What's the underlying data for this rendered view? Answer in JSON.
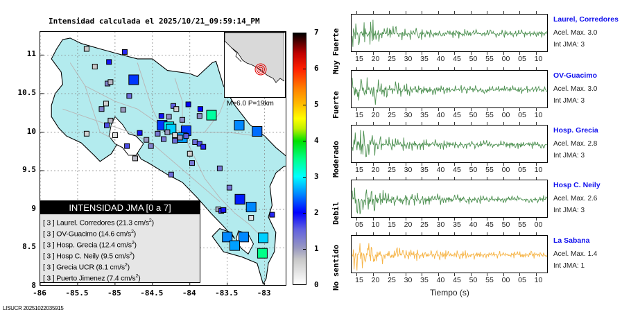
{
  "chart_data": [
    {
      "type": "scatter",
      "title": "Intensidad calculada el 2025/10/21_09:59:14_PM",
      "xlabel": "",
      "ylabel": "",
      "xlim": [
        -86,
        -82.7
      ],
      "ylim": [
        8,
        11.3
      ],
      "xticks": [
        "-86",
        "-85.5",
        "-85",
        "-84.5",
        "-84",
        "-83.5",
        "-83"
      ],
      "yticks": [
        "8",
        "8.5",
        "9",
        "9.5",
        "10",
        "10.5",
        "11"
      ],
      "grid": true,
      "colorbar": {
        "range": [
          0,
          7
        ],
        "ticks": [
          "0",
          "1",
          "2",
          "3",
          "4",
          "5",
          "6",
          "7"
        ],
        "categories": [
          "No sentido",
          "Debil",
          "Moderado",
          "Fuerte",
          "Muy Fuerte"
        ]
      },
      "stations": [
        {
          "lon": -84.75,
          "lat": 10.68,
          "intensity": 2.2,
          "size": "large"
        },
        {
          "lon": -84.37,
          "lat": 10.09,
          "intensity": 2.2,
          "size": "large"
        },
        {
          "lon": -84.28,
          "lat": 10.07,
          "intensity": 3.0,
          "size": "large"
        },
        {
          "lon": -84.25,
          "lat": 10.04,
          "intensity": 2.8,
          "size": "large"
        },
        {
          "lon": -84.05,
          "lat": 10.02,
          "intensity": 2.2,
          "size": "large"
        },
        {
          "lon": -84.1,
          "lat": 9.93,
          "intensity": 2.6,
          "size": "large"
        },
        {
          "lon": -83.71,
          "lat": 10.22,
          "intensity": 3.4,
          "size": "large"
        },
        {
          "lon": -83.34,
          "lat": 10.09,
          "intensity": 2.5,
          "size": "large"
        },
        {
          "lon": -83.1,
          "lat": 10.01,
          "intensity": 2.4,
          "size": "large"
        },
        {
          "lon": -83.33,
          "lat": 9.13,
          "intensity": 2.1,
          "size": "large"
        },
        {
          "lon": -83.18,
          "lat": 9.03,
          "intensity": 2.5,
          "size": "large"
        },
        {
          "lon": -83.5,
          "lat": 8.64,
          "intensity": 2.5,
          "size": "large"
        },
        {
          "lon": -83.28,
          "lat": 8.64,
          "intensity": 2.5,
          "size": "large"
        },
        {
          "lon": -83.02,
          "lat": 8.63,
          "intensity": 2.8,
          "size": "large"
        },
        {
          "lon": -83.4,
          "lat": 8.53,
          "intensity": 2.6,
          "size": "large"
        },
        {
          "lon": -83.03,
          "lat": 8.43,
          "intensity": 3.5,
          "size": "large"
        },
        {
          "lon": -85.38,
          "lat": 11.08,
          "intensity": 0.7,
          "size": "small"
        },
        {
          "lon": -84.87,
          "lat": 11.04,
          "intensity": 1.8,
          "size": "small"
        },
        {
          "lon": -85.27,
          "lat": 10.85,
          "intensity": 0.7,
          "size": "small"
        },
        {
          "lon": -85.08,
          "lat": 10.91,
          "intensity": 1.9,
          "size": "small"
        },
        {
          "lon": -85.1,
          "lat": 10.63,
          "intensity": 1.2,
          "size": "small"
        },
        {
          "lon": -85.06,
          "lat": 10.65,
          "intensity": 0.8,
          "size": "small"
        },
        {
          "lon": -84.81,
          "lat": 10.47,
          "intensity": 1.4,
          "size": "small"
        },
        {
          "lon": -85.12,
          "lat": 10.37,
          "intensity": 0.6,
          "size": "small"
        },
        {
          "lon": -85.18,
          "lat": 10.3,
          "intensity": 1.2,
          "size": "small"
        },
        {
          "lon": -85.06,
          "lat": 10.15,
          "intensity": 0.8,
          "size": "small"
        },
        {
          "lon": -84.89,
          "lat": 10.29,
          "intensity": 1.0,
          "size": "small"
        },
        {
          "lon": -85.11,
          "lat": 10.09,
          "intensity": 1.6,
          "size": "small"
        },
        {
          "lon": -85.38,
          "lat": 9.98,
          "intensity": 0.6,
          "size": "small"
        },
        {
          "lon": -85.0,
          "lat": 9.96,
          "intensity": 0.4,
          "size": "small"
        },
        {
          "lon": -84.67,
          "lat": 9.99,
          "intensity": 1.9,
          "size": "small"
        },
        {
          "lon": -84.84,
          "lat": 9.82,
          "intensity": 1.6,
          "size": "small"
        },
        {
          "lon": -84.73,
          "lat": 9.66,
          "intensity": 0.8,
          "size": "small"
        },
        {
          "lon": -84.43,
          "lat": 9.98,
          "intensity": 1.3,
          "size": "small"
        },
        {
          "lon": -84.2,
          "lat": 9.96,
          "intensity": 0.5,
          "size": "small"
        },
        {
          "lon": -84.13,
          "lat": 9.93,
          "intensity": 1.0,
          "size": "small"
        },
        {
          "lon": -83.93,
          "lat": 9.87,
          "intensity": 1.4,
          "size": "small"
        },
        {
          "lon": -83.87,
          "lat": 9.85,
          "intensity": 1.6,
          "size": "small"
        },
        {
          "lon": -83.82,
          "lat": 9.81,
          "intensity": 1.8,
          "size": "small"
        },
        {
          "lon": -84.0,
          "lat": 9.72,
          "intensity": 0.6,
          "size": "small"
        },
        {
          "lon": -83.97,
          "lat": 9.6,
          "intensity": 1.3,
          "size": "small"
        },
        {
          "lon": -84.25,
          "lat": 9.45,
          "intensity": 1.4,
          "size": "small"
        },
        {
          "lon": -83.6,
          "lat": 9.53,
          "intensity": 1.3,
          "size": "small"
        },
        {
          "lon": -83.47,
          "lat": 9.28,
          "intensity": 1.3,
          "size": "small"
        },
        {
          "lon": -83.62,
          "lat": 9.0,
          "intensity": 0.9,
          "size": "small"
        },
        {
          "lon": -83.58,
          "lat": 8.98,
          "intensity": 1.8,
          "size": "small"
        },
        {
          "lon": -83.55,
          "lat": 8.99,
          "intensity": 1.9,
          "size": "small"
        },
        {
          "lon": -83.18,
          "lat": 8.89,
          "intensity": 0.4,
          "size": "small"
        },
        {
          "lon": -82.9,
          "lat": 8.93,
          "intensity": 1.8,
          "size": "small"
        },
        {
          "lon": -84.58,
          "lat": 9.9,
          "intensity": 1.0,
          "size": "small"
        },
        {
          "lon": -84.52,
          "lat": 9.82,
          "intensity": 1.2,
          "size": "small"
        },
        {
          "lon": -84.38,
          "lat": 10.21,
          "intensity": 1.9,
          "size": "small"
        },
        {
          "lon": -84.28,
          "lat": 10.2,
          "intensity": 1.1,
          "size": "small"
        },
        {
          "lon": -84.22,
          "lat": 10.34,
          "intensity": 1.5,
          "size": "small"
        },
        {
          "lon": -84.18,
          "lat": 10.3,
          "intensity": 0.6,
          "size": "small"
        },
        {
          "lon": -84.02,
          "lat": 10.36,
          "intensity": 2.0,
          "size": "small"
        },
        {
          "lon": -83.87,
          "lat": 10.21,
          "intensity": 1.1,
          "size": "small"
        },
        {
          "lon": -83.86,
          "lat": 10.3,
          "intensity": 2.0,
          "size": "small"
        },
        {
          "lon": -84.1,
          "lat": 10.16,
          "intensity": 1.1,
          "size": "small"
        },
        {
          "lon": -84.3,
          "lat": 10.0,
          "intensity": 1.0,
          "size": "small"
        },
        {
          "lon": -84.35,
          "lat": 9.91,
          "intensity": 1.3,
          "size": "small"
        },
        {
          "lon": -84.2,
          "lat": 9.89,
          "intensity": 1.4,
          "size": "small"
        },
        {
          "lon": -84.05,
          "lat": 9.95,
          "intensity": 1.5,
          "size": "small"
        }
      ],
      "epicenter": {
        "magnitude": "M=6.0",
        "depth": "P=19km"
      }
    },
    {
      "type": "line",
      "title": "Acelerogramas",
      "xlabel": "Tiempo (s)",
      "series": [
        {
          "name": "Laurel, Corredores",
          "acel_max": 3.0,
          "int_jma": 3,
          "color": "#2e7d32",
          "xticks": [
            "15",
            "20",
            "25",
            "30",
            "35",
            "40",
            "45",
            "50",
            "55",
            "00",
            "05",
            "10"
          ]
        },
        {
          "name": "OV-Guacimo",
          "acel_max": 3.0,
          "int_jma": 3,
          "color": "#2e7d32",
          "xticks": [
            "15",
            "20",
            "25",
            "30",
            "35",
            "40",
            "45",
            "50",
            "55",
            "00",
            "05",
            "10"
          ]
        },
        {
          "name": "Hosp. Grecia",
          "acel_max": 2.8,
          "int_jma": 3,
          "color": "#2e7d32",
          "xticks": [
            "15",
            "20",
            "25",
            "30",
            "35",
            "40",
            "45",
            "50",
            "55",
            "00",
            "05",
            "10"
          ]
        },
        {
          "name": "Hosp C. Neily",
          "acel_max": 2.6,
          "int_jma": 3,
          "color": "#2e7d32",
          "xticks": [
            "05",
            "10",
            "15",
            "20",
            "25",
            "30",
            "35",
            "40",
            "45",
            "50",
            "55",
            "00"
          ]
        },
        {
          "name": "La Sabana",
          "acel_max": 1.4,
          "int_jma": 1,
          "color": "#f5a623",
          "xticks": [
            "15",
            "20",
            "25",
            "30",
            "35",
            "40",
            "45",
            "50",
            "55",
            "00",
            "05",
            "10"
          ]
        }
      ]
    }
  ],
  "map": {
    "title": "Intensidad calculada el 2025/10/21_09:59:14_PM",
    "inset_label": "M=6.0 P=19km",
    "footer": "LISUCR 20251022035915"
  },
  "legend": {
    "header": "INTENSIDAD JMA [0 a 7]",
    "rows": [
      {
        "jma": "[ 3 ]",
        "station": "Laurel. Corredores",
        "acc": "(21.3 cm/s",
        "sup": "2",
        "close": ")"
      },
      {
        "jma": "[ 3 ]",
        "station": "OV-Guacimo",
        "acc": "(14.6 cm/s",
        "sup": "2",
        "close": ")"
      },
      {
        "jma": "[ 3 ]",
        "station": "Hosp. Grecia",
        "acc": "(12.4 cm/s",
        "sup": "2",
        "close": ")"
      },
      {
        "jma": "[ 3 ]",
        "station": "Hosp C. Neily",
        "acc": "(9.5 cm/s",
        "sup": "2",
        "close": ")"
      },
      {
        "jma": "[ 3 ]",
        "station": "Grecia UCR",
        "acc": "(8.1 cm/s",
        "sup": "2",
        "close": ")"
      },
      {
        "jma": "[ 3 ]",
        "station": "Puerto Jimenez",
        "acc": "(7.4 cm/s",
        "sup": "2",
        "close": ")"
      }
    ]
  },
  "traces": {
    "acc_prefix": "Acel. Max. ",
    "int_prefix": "Int JMA: ",
    "time_label": "Tiempo (s)"
  }
}
